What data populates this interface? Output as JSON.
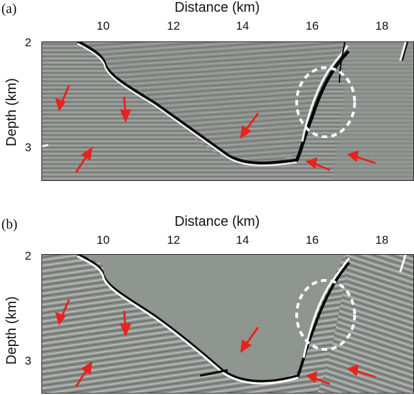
{
  "figure": {
    "panels": [
      {
        "label": "(a)",
        "x_title": "Distance (km)",
        "y_title": "Depth (km)",
        "x_ticks": [
          "10",
          "12",
          "14",
          "16",
          "18"
        ],
        "y_ticks": [
          "2",
          "3"
        ]
      },
      {
        "label": "(b)",
        "x_title": "Distance (km)",
        "y_title": "Depth (km)",
        "x_ticks": [
          "10",
          "12",
          "14",
          "16",
          "18"
        ],
        "y_ticks": [
          "2",
          "3"
        ]
      }
    ],
    "colors": {
      "arrow": "#e8231c",
      "background": "#8c918c",
      "reflector_dark": "#0a0a0a",
      "reflector_bright": "#f5f5f5",
      "ellipse": "#ffffff"
    }
  }
}
